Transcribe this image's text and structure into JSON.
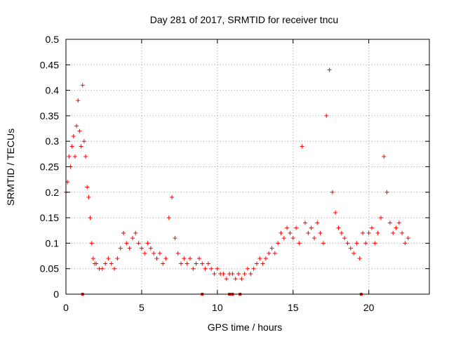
{
  "chart_data": {
    "type": "scatter",
    "title": "Day 281 of 2017, SRMTID for receiver tncu",
    "xlabel": "GPS time / hours",
    "ylabel": "SRMTID / TECUs",
    "xlim": [
      0,
      24
    ],
    "ylim": [
      0,
      0.5
    ],
    "xticks": [
      0,
      5,
      10,
      15,
      20
    ],
    "xtick_labels": [
      "0",
      "5",
      "10",
      "15",
      "20"
    ],
    "yticks": [
      0,
      0.05,
      0.1,
      0.15,
      0.2,
      0.25,
      0.3,
      0.35,
      0.4,
      0.45,
      0.5
    ],
    "ytick_labels": [
      "0",
      "0.05",
      "0.1",
      "0.15",
      "0.2",
      "0.25",
      "0.3",
      "0.35",
      "0.4",
      "0.45",
      "0.5"
    ],
    "grid": true,
    "marker": "+",
    "color": "#ff0000",
    "series": [
      {
        "name": "SRMTID",
        "x": [
          0.0,
          0.1,
          0.2,
          0.3,
          0.4,
          0.5,
          0.6,
          0.7,
          0.8,
          0.9,
          1.0,
          1.1,
          1.2,
          1.3,
          1.4,
          1.5,
          1.6,
          1.7,
          1.8,
          1.9,
          2.0,
          2.2,
          2.4,
          2.6,
          2.8,
          3.0,
          3.2,
          3.4,
          3.6,
          3.8,
          4.0,
          4.2,
          4.4,
          4.6,
          4.8,
          5.0,
          5.2,
          5.4,
          5.6,
          5.8,
          6.0,
          6.2,
          6.4,
          6.6,
          6.8,
          7.0,
          7.2,
          7.4,
          7.6,
          7.8,
          8.0,
          8.2,
          8.4,
          8.6,
          8.8,
          9.0,
          9.2,
          9.4,
          9.6,
          9.8,
          10.0,
          10.2,
          10.4,
          10.6,
          10.8,
          11.0,
          11.2,
          11.4,
          11.6,
          11.8,
          12.0,
          12.2,
          12.4,
          12.6,
          12.8,
          13.0,
          13.2,
          13.4,
          13.6,
          13.8,
          14.0,
          14.2,
          14.4,
          14.6,
          14.8,
          15.0,
          15.2,
          15.4,
          15.6,
          15.8,
          16.0,
          16.2,
          16.4,
          16.6,
          16.8,
          17.0,
          17.2,
          17.4,
          17.6,
          17.8,
          18.0,
          18.2,
          18.4,
          18.6,
          18.8,
          19.0,
          19.2,
          19.4,
          19.6,
          19.8,
          20.0,
          20.2,
          20.4,
          20.6,
          20.8,
          21.0,
          21.2,
          21.4,
          21.6,
          21.8,
          22.0,
          22.2,
          22.4,
          22.6
        ],
        "y": [
          0.2,
          0.22,
          0.27,
          0.25,
          0.29,
          0.31,
          0.27,
          0.33,
          0.38,
          0.32,
          0.29,
          0.41,
          0.3,
          0.27,
          0.21,
          0.19,
          0.15,
          0.1,
          0.07,
          0.06,
          0.06,
          0.05,
          0.05,
          0.06,
          0.07,
          0.06,
          0.05,
          0.07,
          0.09,
          0.12,
          0.1,
          0.09,
          0.11,
          0.12,
          0.1,
          0.09,
          0.08,
          0.1,
          0.09,
          0.08,
          0.07,
          0.08,
          0.06,
          0.07,
          0.15,
          0.19,
          0.11,
          0.08,
          0.06,
          0.07,
          0.06,
          0.07,
          0.05,
          0.06,
          0.07,
          0.06,
          0.05,
          0.06,
          0.05,
          0.04,
          0.05,
          0.04,
          0.04,
          0.03,
          0.04,
          0.04,
          0.03,
          0.04,
          0.03,
          0.04,
          0.05,
          0.04,
          0.05,
          0.06,
          0.07,
          0.06,
          0.07,
          0.08,
          0.09,
          0.08,
          0.1,
          0.12,
          0.11,
          0.13,
          0.12,
          0.11,
          0.13,
          0.1,
          0.29,
          0.14,
          0.12,
          0.13,
          0.11,
          0.14,
          0.12,
          0.1,
          0.35,
          0.44,
          0.2,
          0.16,
          0.13,
          0.12,
          0.11,
          0.1,
          0.09,
          0.08,
          0.1,
          0.07,
          0.12,
          0.1,
          0.12,
          0.13,
          0.1,
          0.12,
          0.15,
          0.27,
          0.2,
          0.14,
          0.12,
          0.13,
          0.14,
          0.12,
          0.1,
          0.11
        ]
      }
    ],
    "gap_markers_x": [
      1.1,
      9.0,
      10.8,
      11.0,
      11.5,
      19.5
    ]
  }
}
